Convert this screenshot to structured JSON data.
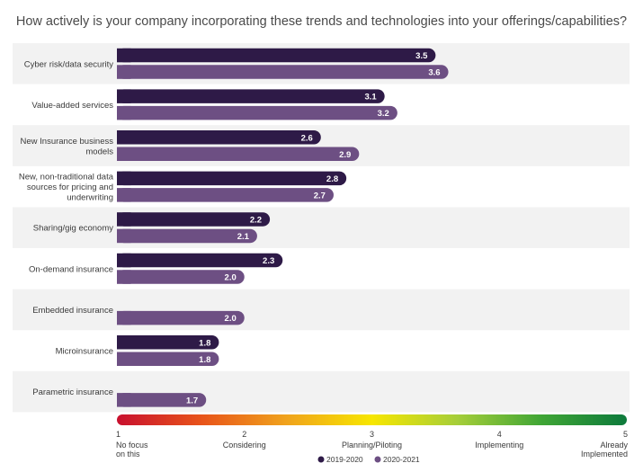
{
  "chart_data": {
    "type": "bar",
    "orientation": "horizontal",
    "title": "How actively is your company incorporating these trends and technologies into your offerings/capabilities?",
    "categories": [
      [
        "Cyber risk/data security"
      ],
      [
        "Value-added services"
      ],
      [
        "New Insurance business",
        "models"
      ],
      [
        "New, non-traditional data",
        "sources for pricing and",
        "underwriting"
      ],
      [
        "Sharing/gig economy"
      ],
      [
        "On-demand insurance"
      ],
      [
        "Embedded insurance"
      ],
      [
        "Microinsurance"
      ],
      [
        "Parametric insurance"
      ]
    ],
    "series": [
      {
        "name": "2019-2020",
        "color": "#2e1a47",
        "values": [
          3.5,
          3.1,
          2.6,
          2.8,
          2.2,
          2.3,
          null,
          1.8,
          null
        ]
      },
      {
        "name": "2020-2021",
        "color": "#6d4f83",
        "values": [
          3.6,
          3.2,
          2.9,
          2.7,
          2.1,
          2.0,
          2.0,
          1.8,
          1.7
        ]
      }
    ],
    "xlim": [
      1,
      5
    ],
    "x_ticks": [
      {
        "value": 1,
        "number": "1",
        "label": [
          "No focus",
          "on this"
        ]
      },
      {
        "value": 2,
        "number": "2",
        "label": [
          "Considering"
        ]
      },
      {
        "value": 3,
        "number": "3",
        "label": [
          "Planning/Piloting"
        ]
      },
      {
        "value": 4,
        "number": "4",
        "label": [
          "Implementing"
        ]
      },
      {
        "value": 5,
        "number": "5",
        "label": [
          "Already",
          "Implemented"
        ]
      }
    ],
    "scale_gradient": [
      "#c8102e",
      "#e8541a",
      "#f0a31c",
      "#f7e600",
      "#a6ce39",
      "#3fa535",
      "#0d7a3c"
    ],
    "row_band_color": "#f2f2f2",
    "legend_position": "bottom-center",
    "grid": false
  }
}
